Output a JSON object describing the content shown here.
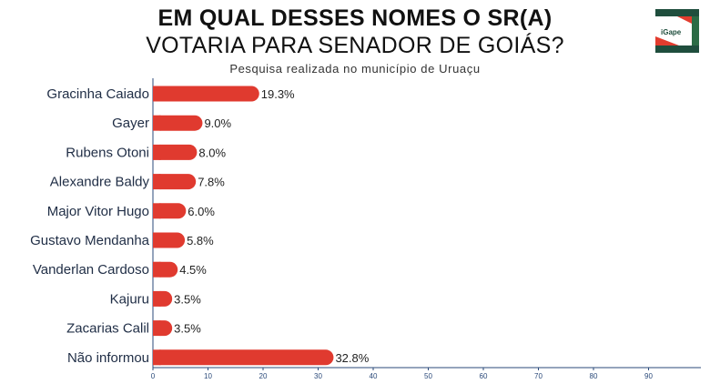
{
  "header": {
    "title_line1": "EM QUAL DESSES NOMES O SR(A)",
    "title_line2": "VOTARIA PARA SENADOR DE GOIÁS?",
    "subtitle": "Pesquisa realizada no município de Uruaçu"
  },
  "logo": {
    "text": "iGape",
    "colors": [
      "#1f4e3d",
      "#e23c2e",
      "#2b6b45"
    ]
  },
  "chart_data": {
    "type": "bar",
    "orientation": "horizontal",
    "title": "EM QUAL DESSES NOMES O SR(A) VOTARIA PARA SENADOR DE GOIÁS?",
    "subtitle": "Pesquisa realizada no município de Uruaçu",
    "xlabel": "",
    "ylabel": "",
    "categories": [
      "Gracinha Caiado",
      "Gayer",
      "Rubens Otoni",
      "Alexandre Baldy",
      "Major Vitor Hugo",
      "Gustavo Mendanha",
      "Vanderlan Cardoso",
      "Kajuru",
      "Zacarias Calil",
      "Não informou"
    ],
    "values": [
      19.3,
      9.0,
      8.0,
      7.8,
      6.0,
      5.8,
      4.5,
      3.5,
      3.5,
      32.8
    ],
    "value_labels": [
      "19.3%",
      "9.0%",
      "8.0%",
      "7.8%",
      "6.0%",
      "5.8%",
      "4.5%",
      "3.5%",
      "3.5%",
      "32.8%"
    ],
    "xlim": [
      0,
      100
    ],
    "xticks": [
      0,
      10,
      20,
      30,
      40,
      50,
      60,
      70,
      80,
      90
    ],
    "grid": false,
    "legend": "none",
    "bar_color": "#e03a2f"
  }
}
